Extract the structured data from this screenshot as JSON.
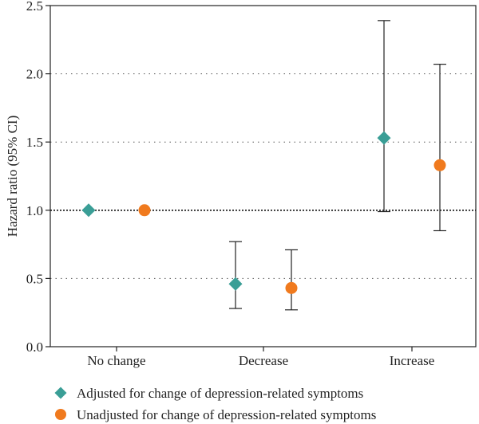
{
  "chart_data": {
    "type": "scatter",
    "categories": [
      "No change",
      "Decrease",
      "Increase"
    ],
    "ylabel": "Hazard ratio (95% CI)",
    "ylim": [
      0,
      2.5
    ],
    "yticks": [
      "0.0",
      "0.5",
      "1.0",
      "1.5",
      "2.0",
      "2.5"
    ],
    "grid": "horizontal dotted",
    "reference_line": 1.0,
    "legend_position": "bottom",
    "series": [
      {
        "name": "Adjusted for change of depression-related symptoms",
        "marker": "diamond",
        "color": "#3a9e96",
        "values": [
          1.0,
          0.46,
          1.53
        ],
        "ci_low": [
          null,
          0.28,
          0.99
        ],
        "ci_high": [
          null,
          0.77,
          2.39
        ]
      },
      {
        "name": "Unadjusted for change of depression-related symptoms",
        "marker": "circle",
        "color": "#f07a1e",
        "values": [
          1.0,
          0.43,
          1.33
        ],
        "ci_low": [
          null,
          0.27,
          0.85
        ],
        "ci_high": [
          null,
          0.71,
          2.07
        ]
      }
    ]
  }
}
